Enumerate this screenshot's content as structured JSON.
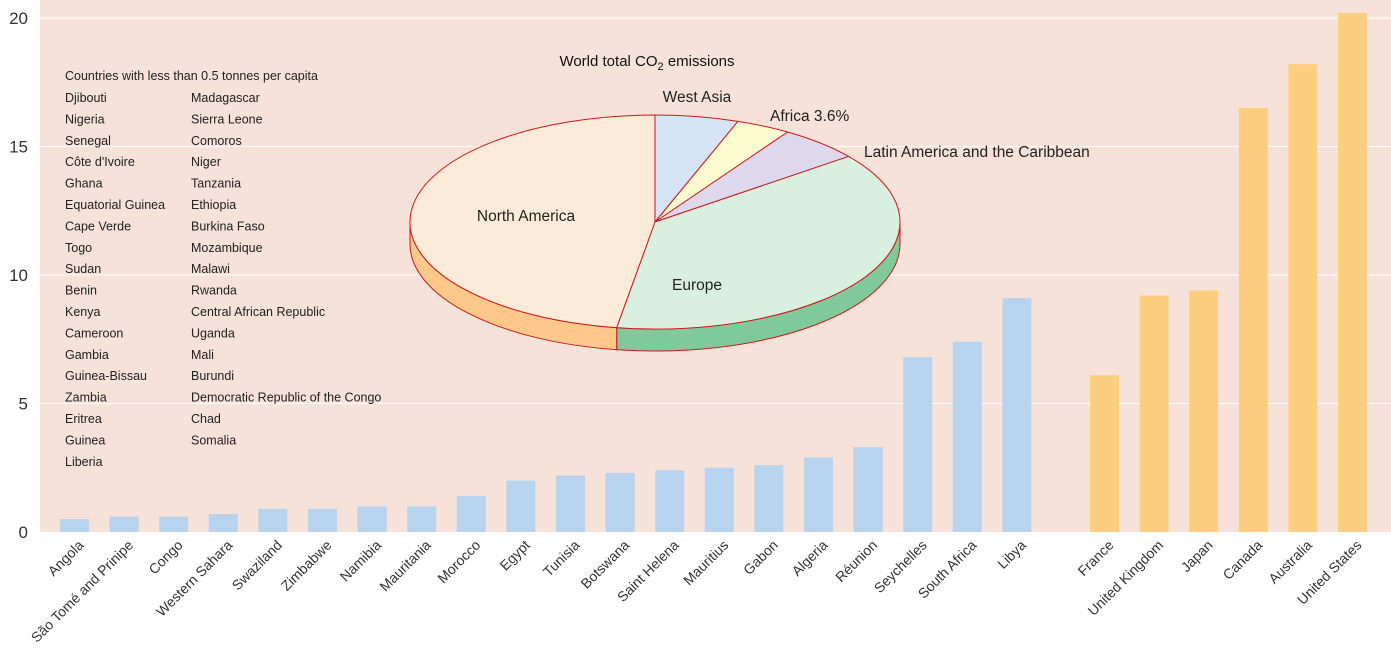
{
  "chart_data": {
    "type": "bar",
    "ylim": [
      0,
      20
    ],
    "y_ticks": [
      "0",
      "5",
      "10",
      "15",
      "20"
    ],
    "grid": true,
    "colors": {
      "background": "#f6e2d8",
      "africa_bar": "#b7d3ee",
      "developed_bar": "#fdce80"
    },
    "series": [
      {
        "group": "africa",
        "categories": [
          "Angola",
          "São Tomé and Prinipe",
          "Congo",
          "Western Sahara",
          "Swaziland",
          "Zimbabwe",
          "Namibia",
          "Mauritania",
          "Morocco",
          "Egypt",
          "Tunisia",
          "Botswana",
          "Saint Helena",
          "Mauritius",
          "Gabon",
          "Algeria",
          "Réunion",
          "Seychelles",
          "South Africa",
          "Libya"
        ],
        "values": [
          0.5,
          0.6,
          0.6,
          0.7,
          0.9,
          0.9,
          1.0,
          1.0,
          1.4,
          2.0,
          2.2,
          2.3,
          2.4,
          2.5,
          2.6,
          2.9,
          3.3,
          6.8,
          7.4,
          9.1
        ]
      },
      {
        "group": "developed",
        "categories": [
          "France",
          "United Kingdom",
          "Japan",
          "Canada",
          "Australia",
          "United States"
        ],
        "values": [
          6.1,
          9.2,
          9.4,
          16.5,
          18.2,
          20.2
        ]
      }
    ],
    "legend_box": {
      "heading": "Countries with less than 0.5 tonnes per capita",
      "col1": [
        "Djibouti",
        "Nigeria",
        "Senegal",
        "Côte d'Ivoire",
        "Ghana",
        "Equatorial Guinea",
        "Cape Verde",
        "Togo",
        "Sudan",
        "Benin",
        "Kenya",
        "Cameroon",
        "Gambia",
        "Guinea-Bissau",
        "Zambia",
        "Eritrea",
        "Guinea",
        "Liberia"
      ],
      "col2": [
        "Madagascar",
        "Sierra Leone",
        "Comoros",
        "Niger",
        "Tanzania",
        "Ethiopia",
        "Burkina Faso",
        "Mozambique",
        "Malawi",
        "Rwanda",
        "Central African Republic",
        "Uganda",
        "Mali",
        "Burundi",
        "Democratic Republic of the Congo",
        "Chad",
        "Somalia"
      ]
    },
    "inset_pie": {
      "type": "pie",
      "title_main": "World total CO",
      "title_sub": "2",
      "title_end": " emissions",
      "slices": [
        {
          "label": "West Asia",
          "value": 5.5,
          "color": "#d6e4f7",
          "side": "#a9c4e6"
        },
        {
          "label": "Africa 3.6%",
          "value": 3.6,
          "color": "#fdfbd0",
          "side": "#e8e4a0"
        },
        {
          "label": "Latin America and the Caribbean",
          "value": 5.4,
          "color": "#ddd8ee",
          "side": "#b8aed8"
        },
        {
          "label": "Europe",
          "value": 38.0,
          "color": "#d9efe0",
          "side": "#7fc99a"
        },
        {
          "label": "North America",
          "value": 47.5,
          "color": "#fdebd9",
          "side": "#fdc98a"
        }
      ],
      "edge_color": "#cc1a1a"
    }
  }
}
